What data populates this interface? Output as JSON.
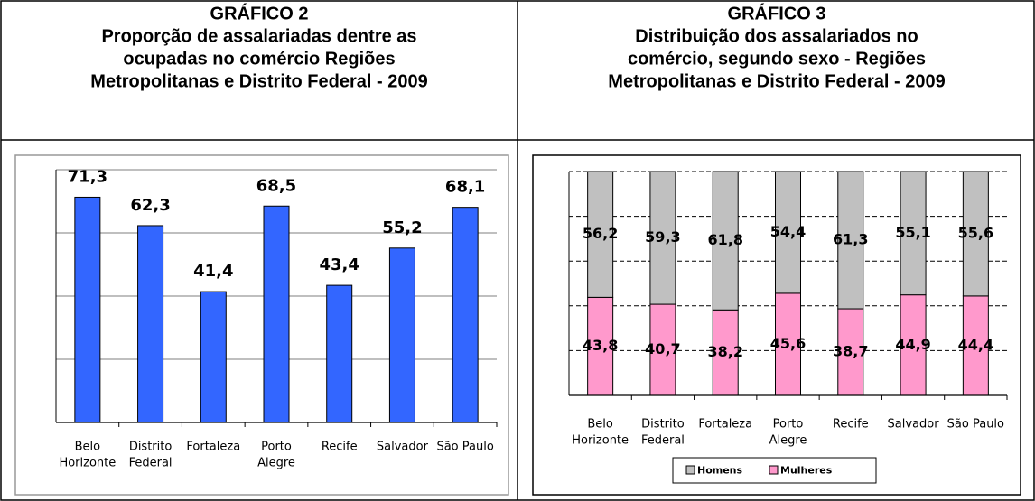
{
  "chart_data": [
    {
      "type": "bar",
      "label": "GRÁFICO 2",
      "title": [
        "Proporção de assalariadas dentre as",
        "ocupadas no comércio Regiões",
        "Metropolitanas e Distrito Federal - 2009"
      ],
      "categories": [
        [
          "Belo",
          "Horizonte"
        ],
        [
          "Distrito",
          "Federal"
        ],
        [
          "Fortaleza"
        ],
        [
          "Porto",
          "Alegre"
        ],
        [
          "Recife"
        ],
        [
          "Salvador"
        ],
        [
          "São Paulo"
        ]
      ],
      "values": [
        71.3,
        62.3,
        41.4,
        68.5,
        43.4,
        55.2,
        68.1
      ],
      "value_labels": [
        "71,3",
        "62,3",
        "41,4",
        "68,5",
        "43,4",
        "55,2",
        "68,1"
      ],
      "color": "#3366ff",
      "ylim": [
        0,
        80
      ],
      "yticks": [
        0,
        20,
        40,
        60,
        80
      ],
      "grid": true
    },
    {
      "type": "stacked_bar",
      "label": "GRÁFICO 3",
      "title": [
        "Distribuição dos assalariados no",
        "comércio, segundo sexo - Regiões",
        "Metropolitanas e Distrito Federal - 2009"
      ],
      "categories": [
        [
          "Belo",
          "Horizonte"
        ],
        [
          "Distrito",
          "Federal"
        ],
        [
          "Fortaleza"
        ],
        [
          "Porto",
          "Alegre"
        ],
        [
          "Recife"
        ],
        [
          "Salvador"
        ],
        [
          "São Paulo"
        ]
      ],
      "series": [
        {
          "name": "Mulheres",
          "color": "#ff99cc",
          "values": [
            43.8,
            40.7,
            38.2,
            45.6,
            38.7,
            44.9,
            44.4
          ],
          "value_labels": [
            "43,8",
            "40,7",
            "38,2",
            "45,6",
            "38,7",
            "44,9",
            "44,4"
          ]
        },
        {
          "name": "Homens",
          "color": "#c0c0c0",
          "values": [
            56.2,
            59.3,
            61.8,
            54.4,
            61.3,
            55.1,
            55.6
          ],
          "value_labels": [
            "56,2",
            "59,3",
            "61,8",
            "54,4",
            "61,3",
            "55,1",
            "55,6"
          ]
        }
      ],
      "legend_order": [
        1,
        0
      ],
      "ylim": [
        0,
        100
      ],
      "yticks": [
        0,
        20,
        40,
        60,
        80,
        100
      ],
      "grid": true,
      "legend": "bottom"
    }
  ]
}
